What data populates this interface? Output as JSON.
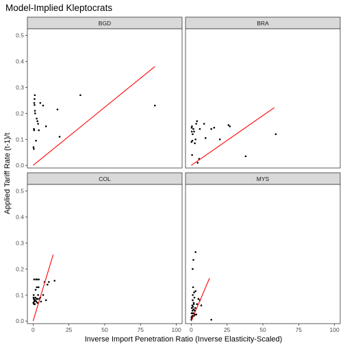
{
  "chart_data": {
    "type": "scatter",
    "title": "Model-Implied Kleptocrats",
    "xlabel": "Inverse Import Penetration Ratio (Inverse Elasticity-Scaled)",
    "ylabel": "Applied Tariff Rate (t-1)/t",
    "xlim": [
      -4,
      104
    ],
    "ylim": [
      -0.01,
      0.525
    ],
    "x_ticks": [
      0,
      25,
      50,
      75,
      100
    ],
    "y_ticks": [
      0.0,
      0.1,
      0.2,
      0.3,
      0.4,
      0.5
    ],
    "y_tick_labels": [
      "0.0",
      "0.1",
      "0.2",
      "0.3",
      "0.4",
      "0.5"
    ],
    "grid": false,
    "facets": [
      {
        "name": "BGD",
        "points": [
          [
            0.3,
            0.07
          ],
          [
            0.5,
            0.063
          ],
          [
            0.6,
            0.14
          ],
          [
            0.7,
            0.135
          ],
          [
            0.8,
            0.24
          ],
          [
            1.0,
            0.232
          ],
          [
            1.0,
            0.255
          ],
          [
            1.2,
            0.27
          ],
          [
            1.3,
            0.21
          ],
          [
            1.4,
            0.2
          ],
          [
            2.0,
            0.095
          ],
          [
            2.5,
            0.18
          ],
          [
            3.0,
            0.17
          ],
          [
            3.5,
            0.16
          ],
          [
            4.0,
            0.135
          ],
          [
            5.0,
            0.24
          ],
          [
            7.0,
            0.23
          ],
          [
            9.0,
            0.15
          ],
          [
            17.0,
            0.215
          ],
          [
            18.5,
            0.11
          ],
          [
            33.0,
            0.27
          ],
          [
            85.0,
            0.23
          ]
        ],
        "fit_line": [
          [
            0.0,
            0.0
          ],
          [
            85.0,
            0.38
          ]
        ]
      },
      {
        "name": "BRA",
        "points": [
          [
            0.2,
            0.09
          ],
          [
            0.3,
            0.145
          ],
          [
            0.4,
            0.13
          ],
          [
            0.5,
            0.15
          ],
          [
            0.6,
            0.04
          ],
          [
            0.8,
            0.095
          ],
          [
            1.0,
            0.12
          ],
          [
            1.5,
            0.14
          ],
          [
            2.0,
            0.13
          ],
          [
            2.5,
            0.085
          ],
          [
            3.0,
            0.1
          ],
          [
            3.5,
            0.16
          ],
          [
            4.0,
            0.17
          ],
          [
            4.5,
            0.01
          ],
          [
            5.5,
            0.025
          ],
          [
            6.0,
            0.14
          ],
          [
            9.0,
            0.16
          ],
          [
            10.0,
            0.105
          ],
          [
            14.0,
            0.14
          ],
          [
            16.0,
            0.145
          ],
          [
            20.0,
            0.1
          ],
          [
            26.0,
            0.155
          ],
          [
            27.0,
            0.15
          ],
          [
            38.0,
            0.035
          ],
          [
            59.0,
            0.12
          ]
        ],
        "fit_line": [
          [
            0.0,
            0.0
          ],
          [
            58.0,
            0.222
          ]
        ]
      },
      {
        "name": "COL",
        "points": [
          [
            0.2,
            0.07
          ],
          [
            0.3,
            0.09
          ],
          [
            0.4,
            0.1
          ],
          [
            0.5,
            0.085
          ],
          [
            0.6,
            0.065
          ],
          [
            0.7,
            0.16
          ],
          [
            0.8,
            0.075
          ],
          [
            1.0,
            0.08
          ],
          [
            1.2,
            0.065
          ],
          [
            1.4,
            0.08
          ],
          [
            1.6,
            0.09
          ],
          [
            1.8,
            0.12
          ],
          [
            2.0,
            0.16
          ],
          [
            2.2,
            0.075
          ],
          [
            2.4,
            0.085
          ],
          [
            2.6,
            0.13
          ],
          [
            2.8,
            0.16
          ],
          [
            3.0,
            0.07
          ],
          [
            3.2,
            0.085
          ],
          [
            3.5,
            0.1
          ],
          [
            3.8,
            0.13
          ],
          [
            4.0,
            0.16
          ],
          [
            4.5,
            0.085
          ],
          [
            5.0,
            0.09
          ],
          [
            5.5,
            0.075
          ],
          [
            7.0,
            0.1
          ],
          [
            8.0,
            0.15
          ],
          [
            9.0,
            0.08
          ],
          [
            10.0,
            0.14
          ],
          [
            11.0,
            0.15
          ],
          [
            15.0,
            0.155
          ]
        ],
        "fit_line": [
          [
            0.0,
            0.0
          ],
          [
            14.0,
            0.255
          ]
        ]
      },
      {
        "name": "MYS",
        "points": [
          [
            0.1,
            0.005
          ],
          [
            0.2,
            0.015
          ],
          [
            0.3,
            0.03
          ],
          [
            0.4,
            0.05
          ],
          [
            0.5,
            0.01
          ],
          [
            0.6,
            0.03
          ],
          [
            0.7,
            0.06
          ],
          [
            0.8,
            0.02
          ],
          [
            0.9,
            0.04
          ],
          [
            1.0,
            0.08
          ],
          [
            1.1,
            0.1
          ],
          [
            1.2,
            0.055
          ],
          [
            1.3,
            0.13
          ],
          [
            1.4,
            0.03
          ],
          [
            1.5,
            0.02
          ],
          [
            1.6,
            0.045
          ],
          [
            1.7,
            0.07
          ],
          [
            1.8,
            0.065
          ],
          [
            1.9,
            0.02
          ],
          [
            2.0,
            0.11
          ],
          [
            2.2,
            0.09
          ],
          [
            2.4,
            0.04
          ],
          [
            2.5,
            0.025
          ],
          [
            2.8,
            0.05
          ],
          [
            3.0,
            0.115
          ],
          [
            3.5,
            0.025
          ],
          [
            4.0,
            0.065
          ],
          [
            5.0,
            0.085
          ],
          [
            6.0,
            0.08
          ],
          [
            7.0,
            0.06
          ],
          [
            1.0,
            0.2
          ],
          [
            1.5,
            0.235
          ],
          [
            3.0,
            0.265
          ],
          [
            14.0,
            0.005
          ]
        ],
        "fit_line": [
          [
            0.0,
            0.0
          ],
          [
            12.8,
            0.165
          ]
        ]
      }
    ],
    "colors": {
      "points": "#000000",
      "fit_line": "#ff0000",
      "strip_fill": "#d9d9d9",
      "panel_border": "#333333"
    }
  }
}
